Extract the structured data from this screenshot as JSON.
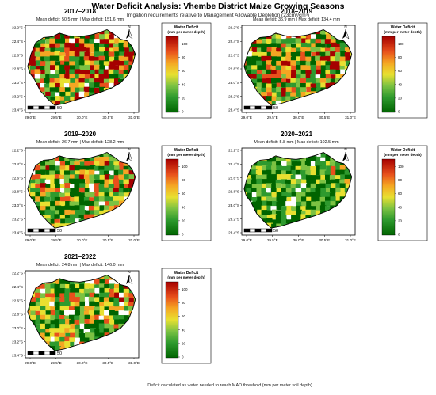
{
  "header": {
    "title": "Water Deficit Analysis: Vhembe District Maize Growing Seasons",
    "subtitle": "Irrigation requirements relative to Management Allowable Depletion (23cm³/cm³)"
  },
  "footer": {
    "note": "Deficit calculated as water needed to reach MAD threshold (mm per meter soil depth)"
  },
  "legend": {
    "title_line1": "Water Deficit",
    "title_line2": "(mm per meter depth)",
    "ticks": [
      "0",
      "20",
      "40",
      "60",
      "80",
      "100"
    ],
    "colors": [
      "#006400",
      "#2e9a2e",
      "#7cc242",
      "#e8e030",
      "#f5a623",
      "#e8501c",
      "#a50000"
    ]
  },
  "map_axes": {
    "lat_labels": [
      "22.2°S",
      "22.4°S",
      "22.6°S",
      "22.8°S",
      "23.0°S",
      "23.2°S",
      "23.4°S"
    ],
    "lon_labels": [
      "29.0°E",
      "29.5°E",
      "30.0°E",
      "30.5°E",
      "31.0°E"
    ],
    "north_label": "N",
    "scale_label": "50"
  },
  "panels": [
    {
      "season": "2017–2018",
      "stats": "Mean deficit: 50.5 mm | Max deficit: 151.6 mm",
      "mean": 50.5,
      "max": 151.6
    },
    {
      "season": "2018–2019",
      "stats": "Mean deficit: 35.9 mm | Max deficit: 134.4 mm",
      "mean": 35.9,
      "max": 134.4
    },
    {
      "season": "2019–2020",
      "stats": "Mean deficit: 26.7 mm | Max deficit: 128.2 mm",
      "mean": 26.7,
      "max": 128.2
    },
    {
      "season": "2020–2021",
      "stats": "Mean deficit: 5.8 mm | Max deficit: 102.5 mm",
      "mean": 5.8,
      "max": 102.5
    },
    {
      "season": "2021–2022",
      "stats": "Mean deficit: 24.8 mm | Max deficit: 146.0 mm",
      "mean": 24.8,
      "max": 146.0
    }
  ]
}
